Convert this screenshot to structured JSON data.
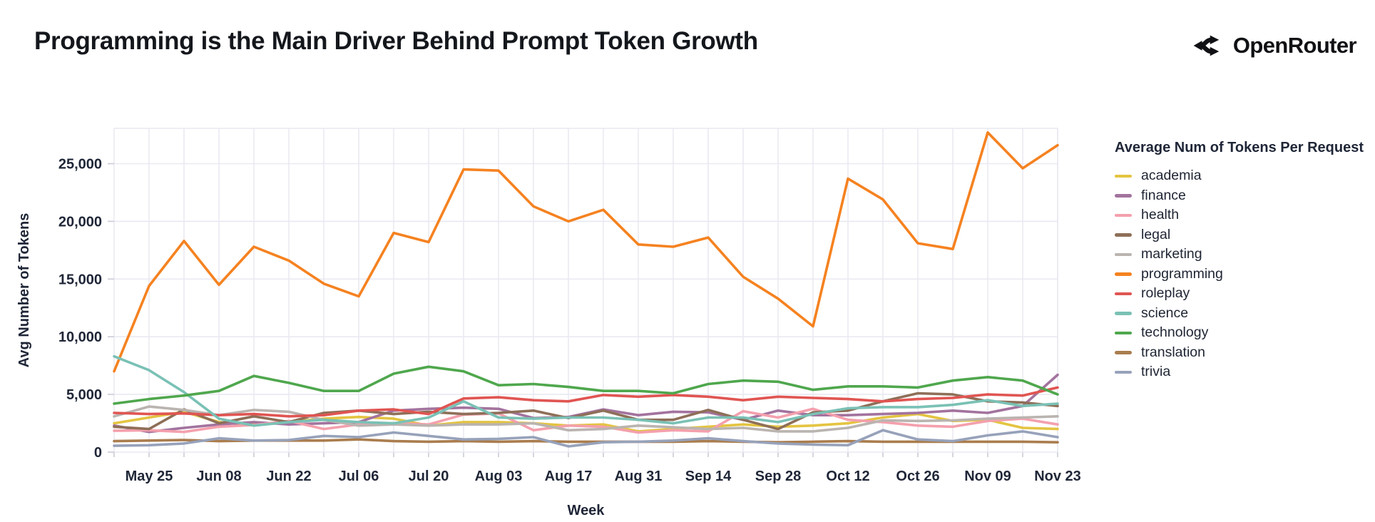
{
  "header": {
    "title": "Programming is the Main Driver Behind Prompt Token Growth"
  },
  "brand": {
    "name": "OpenRouter"
  },
  "colors": {
    "grid": "#e9e9f2",
    "tick_stub": "#c9cbd6",
    "text": "#1f2637",
    "title_text": "#14171c"
  },
  "chart_data": {
    "type": "line",
    "title": "Programming is the Main Driver Behind Prompt Token Growth",
    "xlabel": "Week",
    "ylabel": "Avg Number of Tokens",
    "legend_title": "Average Num of Tokens Per Request",
    "legend_position": "right",
    "grid": true,
    "ylim": [
      0,
      28060
    ],
    "yticks": [
      0,
      5000,
      10000,
      15000,
      20000,
      25000
    ],
    "weeks": [
      "May 18",
      "May 25",
      "Jun 01",
      "Jun 08",
      "Jun 15",
      "Jun 22",
      "Jun 29",
      "Jul 06",
      "Jul 13",
      "Jul 20",
      "Jul 27",
      "Aug 03",
      "Aug 10",
      "Aug 17",
      "Aug 24",
      "Aug 31",
      "Sep 07",
      "Sep 14",
      "Sep 21",
      "Sep 28",
      "Oct 05",
      "Oct 12",
      "Oct 19",
      "Oct 26",
      "Nov 02",
      "Nov 09",
      "Nov 16",
      "Nov 23"
    ],
    "x_tick_indices": [
      1,
      3,
      5,
      7,
      9,
      11,
      13,
      15,
      17,
      19,
      21,
      23,
      25,
      27
    ],
    "x_tick_labels": [
      "May 25",
      "Jun 08",
      "Jun 22",
      "Jul 06",
      "Jul 20",
      "Aug 03",
      "Aug 17",
      "Aug 31",
      "Sep 14",
      "Sep 28",
      "Oct 12",
      "Oct 26",
      "Nov 09",
      "Nov 23"
    ],
    "series": [
      {
        "name": "academia",
        "color": "#e4c441",
        "values": [
          2500,
          3000,
          3500,
          2600,
          2400,
          2600,
          2900,
          3050,
          2900,
          2300,
          2600,
          2600,
          2500,
          2300,
          2400,
          1800,
          2000,
          2200,
          2400,
          2200,
          2300,
          2500,
          3000,
          3300,
          2700,
          2800,
          2100,
          2000
        ]
      },
      {
        "name": "finance",
        "color": "#a3739e",
        "values": [
          2300,
          1750,
          2100,
          2400,
          2600,
          2400,
          2500,
          2600,
          3600,
          3750,
          3850,
          3750,
          2950,
          3050,
          3700,
          3200,
          3500,
          3450,
          2800,
          3600,
          3200,
          3200,
          3300,
          3400,
          3600,
          3400,
          4000,
          6700
        ]
      },
      {
        "name": "health",
        "color": "#f4a0ad",
        "values": [
          1850,
          1900,
          1750,
          2200,
          2350,
          2700,
          2000,
          2400,
          2500,
          2400,
          3250,
          3350,
          1900,
          2300,
          2200,
          1700,
          1900,
          1800,
          3550,
          3000,
          3750,
          2800,
          2600,
          2300,
          2200,
          2700,
          2900,
          2400
        ]
      },
      {
        "name": "legal",
        "color": "#8e6f58",
        "values": [
          2200,
          2000,
          3700,
          2500,
          3100,
          2600,
          3400,
          3600,
          3300,
          3500,
          3300,
          3400,
          3600,
          2950,
          3600,
          2800,
          2800,
          3650,
          2800,
          2000,
          3450,
          3600,
          4400,
          5100,
          5000,
          4400,
          4300,
          4000
        ]
      },
      {
        "name": "marketing",
        "color": "#bab4b0",
        "values": [
          3100,
          3950,
          3650,
          3200,
          3650,
          3500,
          2800,
          2300,
          2400,
          2300,
          2400,
          2400,
          2500,
          1900,
          2000,
          2300,
          2150,
          2000,
          2100,
          1800,
          1800,
          2100,
          2750,
          2700,
          2750,
          2900,
          3000,
          3100
        ]
      },
      {
        "name": "programming",
        "color": "#f58220",
        "values": [
          7000,
          14400,
          18300,
          14500,
          17800,
          16600,
          14600,
          13500,
          19000,
          18200,
          24500,
          24400,
          21300,
          20000,
          21000,
          18000,
          17800,
          18600,
          15200,
          13300,
          10900,
          23700,
          21900,
          18100,
          17600,
          27700,
          24600,
          26600
        ]
      },
      {
        "name": "roleplay",
        "color": "#e05552",
        "values": [
          3400,
          3300,
          3350,
          3200,
          3300,
          3100,
          3200,
          3600,
          3700,
          3300,
          4650,
          4750,
          4500,
          4400,
          4950,
          4800,
          4950,
          4800,
          4500,
          4800,
          4700,
          4600,
          4400,
          4600,
          4700,
          5000,
          4900,
          5600
        ]
      },
      {
        "name": "science",
        "color": "#7ac1b5",
        "values": [
          8300,
          7100,
          5200,
          2900,
          2300,
          2600,
          2800,
          2600,
          2500,
          3000,
          4400,
          3000,
          2900,
          3000,
          3000,
          2800,
          2500,
          3000,
          3000,
          2600,
          3300,
          3800,
          3900,
          3900,
          4100,
          4500,
          4000,
          4200
        ]
      },
      {
        "name": "technology",
        "color": "#4fa74d",
        "values": [
          4200,
          4600,
          4900,
          5300,
          6600,
          6000,
          5300,
          5300,
          6800,
          7400,
          7000,
          5800,
          5900,
          5650,
          5300,
          5300,
          5100,
          5900,
          6200,
          6100,
          5400,
          5700,
          5700,
          5600,
          6200,
          6500,
          6200,
          5000
        ]
      },
      {
        "name": "translation",
        "color": "#aa7d4e",
        "values": [
          950,
          1000,
          1050,
          950,
          1000,
          1000,
          1000,
          1100,
          950,
          900,
          950,
          900,
          950,
          900,
          900,
          900,
          900,
          950,
          900,
          850,
          900,
          950,
          900,
          900,
          900,
          900,
          900,
          850
        ]
      },
      {
        "name": "trivia",
        "color": "#97a2ba",
        "values": [
          550,
          600,
          750,
          1200,
          1000,
          1050,
          1400,
          1300,
          1700,
          1400,
          1100,
          1150,
          1300,
          500,
          850,
          900,
          1000,
          1200,
          950,
          750,
          650,
          600,
          1900,
          1100,
          950,
          1450,
          1800,
          1300
        ]
      }
    ]
  }
}
